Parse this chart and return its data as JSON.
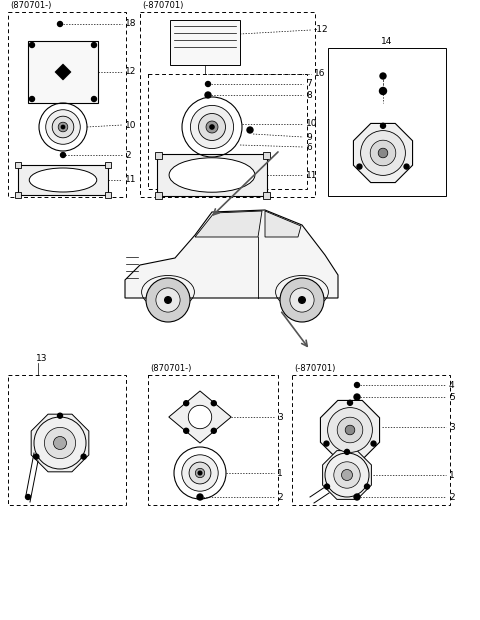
{
  "bg_color": "#ffffff",
  "figw": 4.8,
  "figh": 6.2,
  "dpi": 100
}
